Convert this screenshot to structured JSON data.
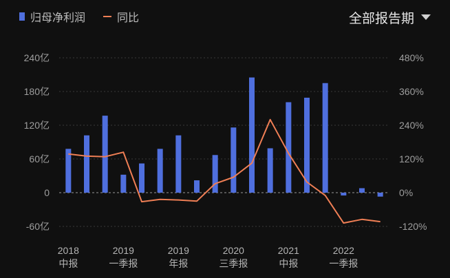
{
  "legend": {
    "bar_label": "归母净利润",
    "line_label": "同比"
  },
  "period_selector": {
    "label": "全部报告期",
    "icon": "triangle-down-icon"
  },
  "colors": {
    "bar": "#4f6fde",
    "line": "#f07f55",
    "background": "#101010"
  },
  "chart_data": {
    "type": "bar",
    "title": "",
    "left_axis": {
      "unit": "亿",
      "ylim": [
        -60,
        240
      ],
      "ticks": [
        "-60亿",
        "0",
        "60亿",
        "120亿",
        "180亿",
        "240亿"
      ]
    },
    "right_axis": {
      "unit": "%",
      "ylim": [
        -120,
        480
      ],
      "ticks": [
        "-120%",
        "0%",
        "120%",
        "240%",
        "360%",
        "480%"
      ]
    },
    "x_labels": [
      {
        "index": 0,
        "year": "2018",
        "period": "中报"
      },
      {
        "index": 3,
        "year": "2019",
        "period": "一季报"
      },
      {
        "index": 6,
        "year": "2019",
        "period": "年报"
      },
      {
        "index": 9,
        "year": "2020",
        "period": "三季报"
      },
      {
        "index": 12,
        "year": "2021",
        "period": "中报"
      },
      {
        "index": 15,
        "year": "2022",
        "period": "一季报"
      }
    ],
    "series": [
      {
        "name": "归母净利润",
        "type": "bar",
        "axis": "left",
        "values": [
          78,
          102,
          137,
          32,
          52,
          78,
          102,
          22,
          67,
          116,
          205,
          79,
          161,
          169,
          195,
          -5,
          8,
          -7
        ]
      },
      {
        "name": "同比",
        "type": "line",
        "axis": "right",
        "values": [
          138,
          130,
          128,
          144,
          -32,
          -24,
          -26,
          -30,
          32,
          55,
          105,
          260,
          140,
          38,
          -10,
          -108,
          -95,
          -103
        ]
      }
    ],
    "grid": "dashed-horizontal",
    "legend_position": "top-left"
  }
}
